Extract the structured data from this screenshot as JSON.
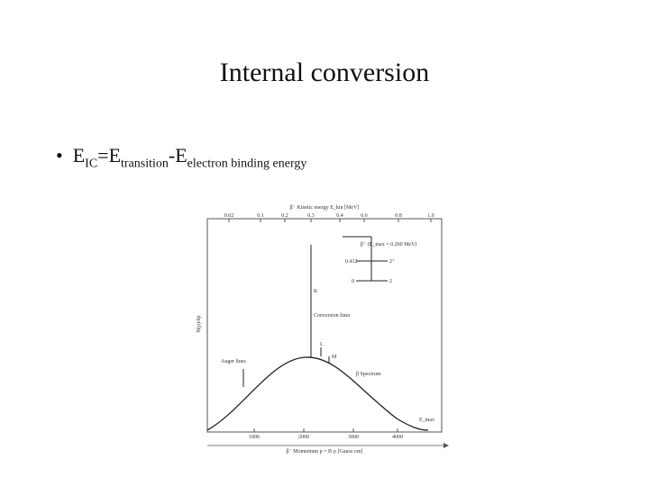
{
  "title": "Internal conversion",
  "bullet": {
    "parts": [
      "E",
      "IC",
      "=E",
      "transition",
      "-E",
      "electron binding energy"
    ]
  },
  "figure": {
    "top_axis_label": "β⁻ Kinetic energy E_kin [MeV]",
    "top_ticks": [
      "0.02",
      "0.1",
      "0.2",
      "0.3",
      "0.4",
      "0.6",
      "0.8",
      "1.0"
    ],
    "bottom_ticks": [
      "1000",
      "2000",
      "3000",
      "4000"
    ],
    "bottom_axis_label": "β⁻ Momentum p = B·ρ [Gauss·cm]",
    "y_axis_label": "N(p)/dp",
    "labels": {
      "decay": "β⁻ (E_max = 0.260 MeV)",
      "level_high": "0.412",
      "spin_high": "2⁺",
      "level_low": "0",
      "spin_low": "2",
      "k": "K",
      "conversion": "Conversion lines",
      "l": "L",
      "m": "M",
      "auger": "Auger lines",
      "spectrum": "β Spectrum",
      "emax": "E_max"
    }
  }
}
